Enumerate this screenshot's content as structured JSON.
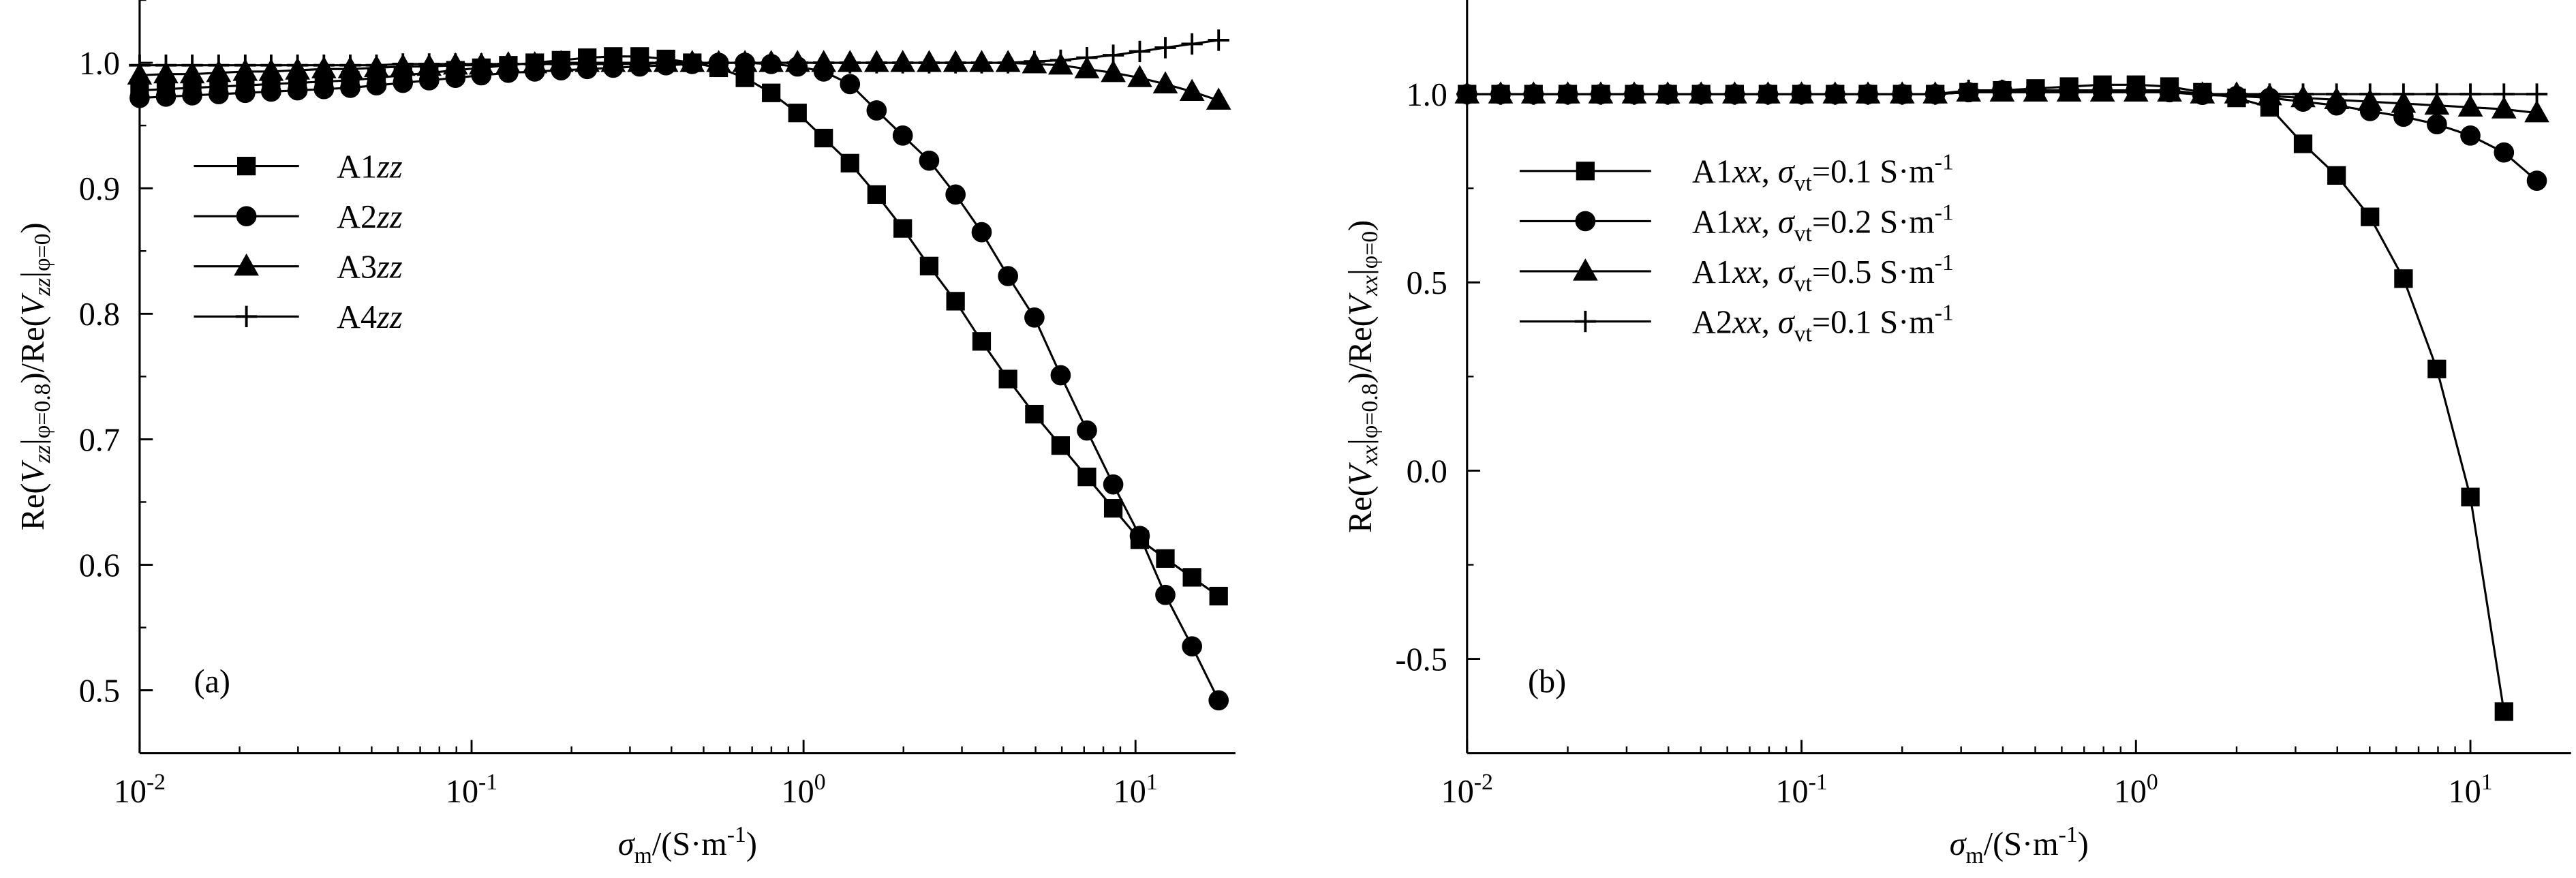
{
  "chart_data": [
    {
      "type": "line",
      "xscale": "log",
      "annotation": "(a)",
      "legend": "center left",
      "minor_ticks": true,
      "xlabel": [
        "σ",
        "m",
        "/(S·m",
        "-1",
        ")"
      ],
      "ylabel": [
        "Re(",
        "V",
        "zz",
        "|",
        "φ=0.8",
        ")/Re(",
        "V",
        "zz",
        "|",
        "φ=0",
        ")"
      ],
      "xlim": [
        0.01,
        20
      ],
      "ylim": [
        0.45,
        1.05
      ],
      "xticks": [
        {
          "value": 0.01,
          "label": "10",
          "exponent": "-2"
        },
        {
          "value": 0.1,
          "label": "10",
          "exponent": "-1"
        },
        {
          "value": 1,
          "label": "10",
          "exponent": "0"
        },
        {
          "value": 10,
          "label": "10",
          "exponent": "1"
        }
      ],
      "yticks": [
        0.5,
        0.6,
        0.7,
        0.8,
        0.9,
        {
          "value": 1.0,
          "label": "1.0"
        }
      ],
      "x": [
        0.01,
        0.012,
        0.0144,
        0.0173,
        0.0208,
        0.0249,
        0.0299,
        0.0359,
        0.0431,
        0.0517,
        0.0621,
        0.0745,
        0.0894,
        0.107,
        0.129,
        0.155,
        0.186,
        0.223,
        0.267,
        0.321,
        0.385,
        0.462,
        0.555,
        0.666,
        0.799,
        0.959,
        1.15,
        1.38,
        1.66,
        1.99,
        2.39,
        2.87,
        3.44,
        4.13,
        4.96,
        5.95,
        7.14,
        8.57,
        10.3,
        12.3,
        14.8,
        17.8
      ],
      "series": [
        {
          "name": [
            "A1",
            "zz"
          ],
          "color": "#000000",
          "marker": "square",
          "values": [
            0.978,
            0.979,
            0.98,
            0.981,
            0.982,
            0.983,
            0.984,
            0.985,
            0.986,
            0.988,
            0.99,
            0.992,
            0.994,
            0.996,
            0.998,
            1.0,
            1.002,
            1.004,
            1.005,
            1.005,
            1.003,
            1.0,
            0.996,
            0.988,
            0.976,
            0.96,
            0.94,
            0.92,
            0.895,
            0.868,
            0.838,
            0.81,
            0.778,
            0.748,
            0.72,
            0.695,
            0.67,
            0.645,
            0.62,
            0.605,
            0.59,
            0.575
          ]
        },
        {
          "name": [
            "A2",
            "zz"
          ],
          "color": "#000000",
          "marker": "circle",
          "values": [
            0.972,
            0.973,
            0.974,
            0.975,
            0.976,
            0.977,
            0.978,
            0.979,
            0.98,
            0.982,
            0.984,
            0.986,
            0.988,
            0.99,
            0.992,
            0.993,
            0.994,
            0.995,
            0.996,
            0.997,
            0.998,
            0.999,
            1.0,
            1.0,
            0.999,
            0.997,
            0.993,
            0.983,
            0.962,
            0.942,
            0.922,
            0.895,
            0.865,
            0.83,
            0.797,
            0.751,
            0.707,
            0.664,
            0.623,
            0.576,
            0.535,
            0.492
          ]
        },
        {
          "name": [
            "A3",
            "zz"
          ],
          "color": "#000000",
          "marker": "triangle",
          "values": [
            0.99,
            0.991,
            0.991,
            0.992,
            0.993,
            0.993,
            0.994,
            0.995,
            0.995,
            0.996,
            0.997,
            0.997,
            0.998,
            0.998,
            0.999,
            0.999,
            1.0,
            1.0,
            1.0,
            1.0,
            1.0,
            1.0,
            1.0,
            1.0,
            1.0,
            1.0,
            1.0,
            1.0,
            1.0,
            1.0,
            1.0,
            1.0,
            1.0,
            1.0,
            0.999,
            0.998,
            0.995,
            0.992,
            0.988,
            0.983,
            0.977,
            0.97
          ]
        },
        {
          "name": [
            "A4",
            "zz"
          ],
          "color": "#000000",
          "marker": "plus",
          "values": [
            0.998,
            0.998,
            0.998,
            0.998,
            0.998,
            0.998,
            0.998,
            0.998,
            0.998,
            0.998,
            0.999,
            0.999,
            0.999,
            0.999,
            0.999,
            0.999,
            0.999,
            0.999,
            0.999,
            0.999,
            1.0,
            1.0,
            1.0,
            1.0,
            1.0,
            1.0,
            1.0,
            1.0,
            1.0,
            1.0,
            1.0,
            1.0,
            1.0,
            1.0,
            1.001,
            1.002,
            1.004,
            1.006,
            1.009,
            1.012,
            1.015,
            1.018
          ]
        }
      ]
    },
    {
      "type": "line",
      "xscale": "log",
      "annotation": "(b)",
      "legend": "center left",
      "minor_ticks": true,
      "xlabel": [
        "σ",
        "m",
        "/(S·m",
        "-1",
        ")"
      ],
      "ylabel": [
        "Re(",
        "V",
        "xx",
        "|",
        "φ=0.8",
        ")/Re(",
        "V",
        "xx",
        "|",
        "φ=0",
        ")"
      ],
      "xlim": [
        0.01,
        20
      ],
      "ylim": [
        -0.75,
        1.25
      ],
      "xticks": [
        {
          "value": 0.01,
          "label": "10",
          "exponent": "-2"
        },
        {
          "value": 0.1,
          "label": "10",
          "exponent": "-1"
        },
        {
          "value": 1,
          "label": "10",
          "exponent": "0"
        },
        {
          "value": 10,
          "label": "10",
          "exponent": "1"
        }
      ],
      "yticks": [
        -0.5,
        {
          "value": 0.0,
          "label": "0.0"
        },
        0.5,
        {
          "value": 1.0,
          "label": "1.0"
        }
      ],
      "x": [
        0.01,
        0.0126,
        0.0158,
        0.02,
        0.0251,
        0.0316,
        0.0398,
        0.0501,
        0.0631,
        0.0794,
        0.1,
        0.126,
        0.158,
        0.2,
        0.251,
        0.316,
        0.398,
        0.501,
        0.631,
        0.794,
        1,
        1.26,
        1.58,
        2,
        2.51,
        3.16,
        3.98,
        5.01,
        6.31,
        7.94,
        10,
        12.6,
        15.8
      ],
      "series": [
        {
          "name": [
            "A1",
            "xx",
            ", ",
            "σ",
            "vt",
            "=0.1 S·m",
            "-1"
          ],
          "color": "#000000",
          "marker": "square",
          "values": [
            1.0,
            1.0,
            1.0,
            1.0,
            1.0,
            1.0,
            1.0,
            1.0,
            1.0,
            1.0,
            1.0,
            1.0,
            1.0,
            1.0,
            1.0,
            1.005,
            1.01,
            1.015,
            1.02,
            1.025,
            1.025,
            1.02,
            1.005,
            0.99,
            0.965,
            0.868,
            0.784,
            0.674,
            0.51,
            0.27,
            -0.07,
            -0.64,
            null
          ]
        },
        {
          "name": [
            "A1",
            "xx",
            ", ",
            "σ",
            "vt",
            "=0.2 S·m",
            "-1"
          ],
          "color": "#000000",
          "marker": "circle",
          "values": [
            1.0,
            1.0,
            1.0,
            1.0,
            1.0,
            1.0,
            1.0,
            1.0,
            1.0,
            1.0,
            1.0,
            1.0,
            1.0,
            1.0,
            1.0,
            1.005,
            1.01,
            1.01,
            1.01,
            1.01,
            1.01,
            1.005,
            0.998,
            0.995,
            0.99,
            0.98,
            0.97,
            0.955,
            0.94,
            0.92,
            0.89,
            0.845,
            0.77
          ]
        },
        {
          "name": [
            "A1",
            "xx",
            ", ",
            "σ",
            "vt",
            "=0.5 S·m",
            "-1"
          ],
          "color": "#000000",
          "marker": "triangle",
          "values": [
            1.0,
            1.0,
            1.0,
            1.0,
            1.0,
            1.0,
            1.0,
            1.0,
            1.0,
            1.0,
            1.0,
            1.0,
            1.0,
            1.0,
            1.0,
            1.005,
            1.005,
            1.005,
            1.005,
            1.005,
            1.005,
            1.005,
            1.0,
            1.0,
            0.995,
            0.99,
            0.985,
            0.98,
            0.975,
            0.97,
            0.965,
            0.96,
            0.95
          ]
        },
        {
          "name": [
            "A2",
            "xx",
            ", ",
            "σ",
            "vt",
            "=0.1 S·m",
            "-1"
          ],
          "color": "#000000",
          "marker": "plus",
          "values": [
            1.0,
            1.0,
            1.0,
            1.0,
            1.0,
            1.0,
            1.0,
            1.0,
            1.0,
            1.0,
            1.0,
            1.0,
            1.0,
            1.0,
            1.0,
            1.01,
            1.01,
            1.01,
            1.01,
            1.01,
            1.01,
            1.01,
            1.0,
            1.0,
            1.0,
            1.0,
            1.0,
            1.0,
            1.0,
            1.0,
            1.0,
            1.0,
            1.0
          ]
        }
      ]
    }
  ]
}
